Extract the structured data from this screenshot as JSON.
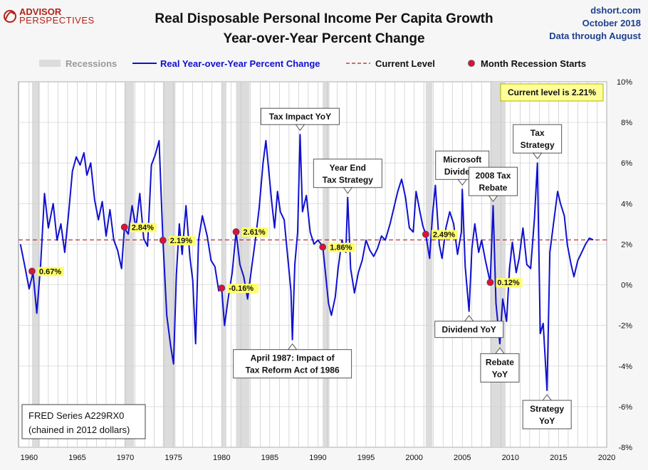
{
  "header": {
    "logo_top": "ADVISOR",
    "logo_bottom": "PERSPECTIVES",
    "title_line1": "Real Disposable Personal Income Per Capita Growth",
    "title_line2": "Year-over-Year Percent Change",
    "source_line1": "dshort.com",
    "source_line2": "October 2018",
    "source_line3": "Data through August"
  },
  "legend": {
    "recessions": "Recessions",
    "series": "Real Year-over-Year Percent Change",
    "current": "Current Level",
    "marker": "Month Recession Starts"
  },
  "current_box": "Current level is 2.21%",
  "note_line1": "FRED Series A229RX0",
  "note_line2": "(chained in 2012 dollars)",
  "colors": {
    "series": "#1010d0",
    "recession": "#dcdcdc",
    "current_line": "#b02020",
    "marker": "#e0103a",
    "label_bg": "#ffff66",
    "background": "#ffffff"
  },
  "chart_data": {
    "type": "line",
    "xlim": [
      1960,
      2020
    ],
    "ylim": [
      -8,
      10
    ],
    "x_ticks": [
      "1960",
      "1965",
      "1970",
      "1975",
      "1980",
      "1985",
      "1990",
      "1995",
      "2000",
      "2005",
      "2010",
      "2015",
      "2020"
    ],
    "y_ticks": [
      "10%",
      "8%",
      "6%",
      "4%",
      "2%",
      "0%",
      "-2%",
      "-4%",
      "-6%",
      "-8%"
    ],
    "current_level": 2.21,
    "recessions": [
      [
        1960.3,
        1961.1
      ],
      [
        1969.9,
        1970.9
      ],
      [
        1973.9,
        1975.2
      ],
      [
        1980.0,
        1980.5
      ],
      [
        1981.5,
        1982.9
      ],
      [
        1990.5,
        1991.2
      ],
      [
        2001.2,
        2001.9
      ],
      [
        2007.9,
        2009.5
      ]
    ],
    "recession_starts": [
      {
        "x": 1960.3,
        "y": 0.67,
        "label": "0.67%"
      },
      {
        "x": 1969.9,
        "y": 2.84,
        "label": "2.84%"
      },
      {
        "x": 1973.9,
        "y": 2.19,
        "label": "2.19%"
      },
      {
        "x": 1980.0,
        "y": -0.16,
        "label": "-0.16%"
      },
      {
        "x": 1981.5,
        "y": 2.61,
        "label": "2.61%"
      },
      {
        "x": 1990.5,
        "y": 1.86,
        "label": "1.86%"
      },
      {
        "x": 2001.2,
        "y": 2.49,
        "label": "2.49%"
      },
      {
        "x": 2007.9,
        "y": 0.12,
        "label": "0.12%"
      }
    ],
    "series": [
      {
        "name": "Real Year-over-Year Percent Change",
        "points": [
          [
            1959.1,
            2.0
          ],
          [
            1959.6,
            0.8
          ],
          [
            1960.0,
            -0.2
          ],
          [
            1960.4,
            0.6
          ],
          [
            1960.8,
            -1.4
          ],
          [
            1961.2,
            1.0
          ],
          [
            1961.6,
            4.5
          ],
          [
            1962.0,
            2.8
          ],
          [
            1962.5,
            4.0
          ],
          [
            1962.9,
            2.2
          ],
          [
            1963.3,
            3.0
          ],
          [
            1963.7,
            1.6
          ],
          [
            1964.1,
            3.5
          ],
          [
            1964.5,
            5.6
          ],
          [
            1964.9,
            6.3
          ],
          [
            1965.3,
            5.9
          ],
          [
            1965.7,
            6.5
          ],
          [
            1966.0,
            5.4
          ],
          [
            1966.4,
            6.0
          ],
          [
            1966.8,
            4.2
          ],
          [
            1967.2,
            3.2
          ],
          [
            1967.6,
            4.1
          ],
          [
            1968.0,
            2.4
          ],
          [
            1968.4,
            3.7
          ],
          [
            1968.8,
            2.2
          ],
          [
            1969.2,
            1.7
          ],
          [
            1969.6,
            0.8
          ],
          [
            1969.9,
            2.8
          ],
          [
            1970.3,
            2.5
          ],
          [
            1970.7,
            3.9
          ],
          [
            1971.1,
            2.8
          ],
          [
            1971.5,
            4.5
          ],
          [
            1971.9,
            2.3
          ],
          [
            1972.3,
            1.9
          ],
          [
            1972.7,
            5.9
          ],
          [
            1973.1,
            6.4
          ],
          [
            1973.5,
            7.1
          ],
          [
            1973.9,
            2.2
          ],
          [
            1974.3,
            -1.5
          ],
          [
            1974.7,
            -3.0
          ],
          [
            1975.0,
            -3.9
          ],
          [
            1975.3,
            0.5
          ],
          [
            1975.6,
            3.0
          ],
          [
            1975.9,
            1.5
          ],
          [
            1976.3,
            3.9
          ],
          [
            1976.7,
            1.4
          ],
          [
            1977.0,
            0.2
          ],
          [
            1977.3,
            -2.9
          ],
          [
            1977.6,
            2.2
          ],
          [
            1978.0,
            3.4
          ],
          [
            1978.5,
            2.4
          ],
          [
            1978.9,
            1.2
          ],
          [
            1979.3,
            0.9
          ],
          [
            1979.7,
            -0.3
          ],
          [
            1980.0,
            -0.16
          ],
          [
            1980.3,
            -2.0
          ],
          [
            1980.7,
            -0.6
          ],
          [
            1981.1,
            0.6
          ],
          [
            1981.5,
            2.6
          ],
          [
            1981.9,
            1.0
          ],
          [
            1982.3,
            0.4
          ],
          [
            1982.7,
            -0.7
          ],
          [
            1983.1,
            0.8
          ],
          [
            1983.5,
            2.2
          ],
          [
            1983.9,
            3.8
          ],
          [
            1984.3,
            6.0
          ],
          [
            1984.6,
            7.1
          ],
          [
            1984.9,
            5.6
          ],
          [
            1985.2,
            4.1
          ],
          [
            1985.5,
            2.8
          ],
          [
            1985.8,
            4.6
          ],
          [
            1986.1,
            3.6
          ],
          [
            1986.5,
            3.2
          ],
          [
            1986.9,
            1.2
          ],
          [
            1987.2,
            -0.3
          ],
          [
            1987.35,
            -2.7
          ],
          [
            1987.6,
            1.0
          ],
          [
            1987.9,
            2.6
          ],
          [
            1988.15,
            7.4
          ],
          [
            1988.4,
            3.6
          ],
          [
            1988.8,
            4.4
          ],
          [
            1989.2,
            2.6
          ],
          [
            1989.6,
            2.0
          ],
          [
            1990.0,
            2.2
          ],
          [
            1990.5,
            1.9
          ],
          [
            1990.8,
            0.5
          ],
          [
            1991.1,
            -0.9
          ],
          [
            1991.4,
            -1.5
          ],
          [
            1991.8,
            -0.6
          ],
          [
            1992.1,
            0.8
          ],
          [
            1992.5,
            2.2
          ],
          [
            1992.9,
            1.6
          ],
          [
            1993.1,
            4.3
          ],
          [
            1993.4,
            0.8
          ],
          [
            1993.8,
            -0.4
          ],
          [
            1994.2,
            0.6
          ],
          [
            1994.6,
            1.2
          ],
          [
            1995.0,
            2.2
          ],
          [
            1995.4,
            1.7
          ],
          [
            1995.8,
            1.4
          ],
          [
            1996.2,
            1.8
          ],
          [
            1996.6,
            2.4
          ],
          [
            1997.0,
            2.2
          ],
          [
            1997.5,
            3.0
          ],
          [
            1997.9,
            3.8
          ],
          [
            1998.3,
            4.6
          ],
          [
            1998.7,
            5.2
          ],
          [
            1999.1,
            4.3
          ],
          [
            1999.5,
            2.8
          ],
          [
            1999.9,
            2.6
          ],
          [
            2000.2,
            4.6
          ],
          [
            2000.6,
            3.6
          ],
          [
            2000.9,
            2.9
          ],
          [
            2001.2,
            2.5
          ],
          [
            2001.6,
            1.3
          ],
          [
            2001.9,
            3.4
          ],
          [
            2002.2,
            4.9
          ],
          [
            2002.6,
            2.0
          ],
          [
            2002.9,
            1.3
          ],
          [
            2003.3,
            2.8
          ],
          [
            2003.7,
            3.6
          ],
          [
            2004.1,
            3.0
          ],
          [
            2004.5,
            1.5
          ],
          [
            2004.9,
            2.6
          ],
          [
            2005.0,
            4.7
          ],
          [
            2005.3,
            0.9
          ],
          [
            2005.7,
            -1.3
          ],
          [
            2006.0,
            1.8
          ],
          [
            2006.3,
            3.0
          ],
          [
            2006.7,
            1.6
          ],
          [
            2007.0,
            2.2
          ],
          [
            2007.4,
            1.2
          ],
          [
            2007.9,
            0.12
          ],
          [
            2008.2,
            3.9
          ],
          [
            2008.5,
            -0.9
          ],
          [
            2008.9,
            -2.9
          ],
          [
            2009.2,
            -0.7
          ],
          [
            2009.6,
            -1.8
          ],
          [
            2009.9,
            0.8
          ],
          [
            2010.2,
            2.1
          ],
          [
            2010.6,
            0.6
          ],
          [
            2010.9,
            1.3
          ],
          [
            2011.3,
            2.8
          ],
          [
            2011.7,
            1.0
          ],
          [
            2012.1,
            0.8
          ],
          [
            2012.5,
            3.3
          ],
          [
            2012.8,
            6.0
          ],
          [
            2013.1,
            -2.4
          ],
          [
            2013.4,
            -1.9
          ],
          [
            2013.8,
            -5.2
          ],
          [
            2014.1,
            1.6
          ],
          [
            2014.5,
            3.1
          ],
          [
            2014.9,
            4.6
          ],
          [
            2015.2,
            4.0
          ],
          [
            2015.6,
            3.4
          ],
          [
            2015.9,
            2.0
          ],
          [
            2016.3,
            1.0
          ],
          [
            2016.6,
            0.4
          ],
          [
            2017.0,
            1.2
          ],
          [
            2017.4,
            1.6
          ],
          [
            2017.8,
            2.0
          ],
          [
            2018.2,
            2.3
          ],
          [
            2018.6,
            2.21
          ]
        ]
      }
    ],
    "annotations": [
      {
        "lines": [
          "Tax Impact YoY"
        ],
        "tx": 1988.15,
        "ty": 7.4,
        "side": "above"
      },
      {
        "lines": [
          "Year End",
          "Tax Strategy"
        ],
        "tx": 1993.1,
        "ty": 4.3,
        "side": "above"
      },
      {
        "lines": [
          "Microsoft",
          "Dividend"
        ],
        "tx": 2005.0,
        "ty": 4.7,
        "side": "above"
      },
      {
        "lines": [
          "2008 Tax",
          "Rebate"
        ],
        "tx": 2008.2,
        "ty": 3.9,
        "side": "above"
      },
      {
        "lines": [
          "Tax",
          "Strategy"
        ],
        "tx": 2012.8,
        "ty": 6.0,
        "side": "above"
      },
      {
        "lines": [
          "April 1987:  Impact of",
          "Tax Reform Act of 1986"
        ],
        "tx": 1987.35,
        "ty": -2.7,
        "side": "below"
      },
      {
        "lines": [
          "Dividend YoY"
        ],
        "tx": 2005.7,
        "ty": -1.3,
        "side": "below"
      },
      {
        "lines": [
          "Rebate",
          "YoY"
        ],
        "tx": 2008.9,
        "ty": -2.9,
        "side": "below"
      },
      {
        "lines": [
          "Strategy",
          "YoY"
        ],
        "tx": 2013.8,
        "ty": -5.2,
        "side": "below"
      }
    ]
  }
}
